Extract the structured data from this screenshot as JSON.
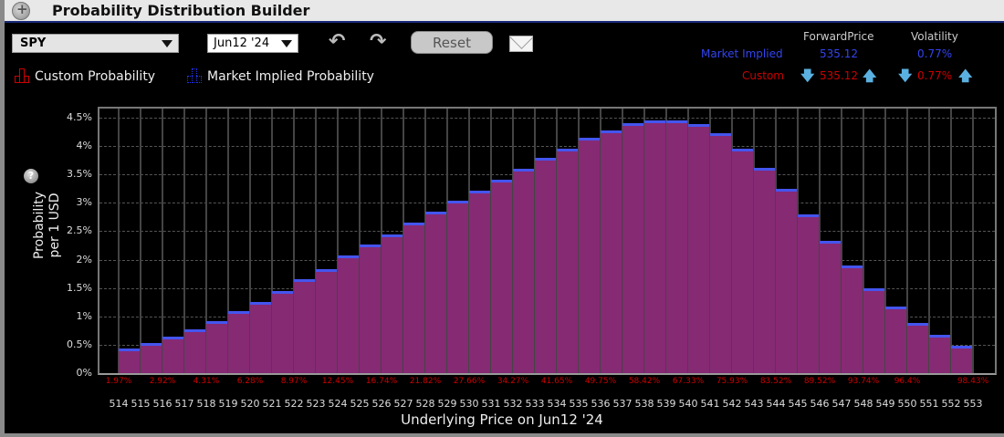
{
  "window": {
    "title": "Probability Distribution Builder"
  },
  "toolbar": {
    "symbol": "SPY",
    "expiry": "Jun12 '24",
    "undo_icon": "undo-icon",
    "redo_icon": "redo-icon",
    "reset_label": "Reset",
    "email_icon": "envelope-icon"
  },
  "legend": {
    "custom_label": "Custom Probability",
    "market_label": "Market Implied Probability",
    "custom_color": "#cc0000",
    "market_color": "#2233ee"
  },
  "stats": {
    "headers": {
      "forward": "ForwardPrice",
      "volatility": "Volatility"
    },
    "market": {
      "label": "Market Implied",
      "forward": "535.12",
      "volatility": "0.77%"
    },
    "custom": {
      "label": "Custom",
      "forward": "535.12",
      "volatility": "0.77%"
    }
  },
  "chart_data": {
    "type": "bar",
    "title": "Probability Distribution Builder",
    "xlabel": "Underlying Price on Jun12 '24",
    "ylabel": "Probability per 1 USD",
    "ylim": [
      0,
      4.5
    ],
    "yticks": [
      "0%",
      "0.5%",
      "1%",
      "1.5%",
      "2%",
      "2.5%",
      "3%",
      "3.5%",
      "4%",
      "4.5%"
    ],
    "grid": true,
    "x_ticks": [
      514,
      515,
      516,
      517,
      518,
      519,
      520,
      521,
      522,
      523,
      524,
      525,
      526,
      527,
      528,
      529,
      530,
      531,
      532,
      533,
      534,
      535,
      536,
      537,
      538,
      539,
      540,
      541,
      542,
      543,
      544,
      545,
      546,
      547,
      548,
      549,
      550,
      551,
      552,
      553
    ],
    "categories": [
      "514",
      "515",
      "516",
      "517",
      "518",
      "519",
      "520",
      "521",
      "522",
      "523",
      "524",
      "525",
      "526",
      "527",
      "528",
      "529",
      "530",
      "531",
      "532",
      "533",
      "534",
      "535",
      "536",
      "537",
      "538",
      "539",
      "540",
      "541",
      "542",
      "543",
      "544",
      "545",
      "546",
      "547",
      "548",
      "549",
      "550",
      "551",
      "552"
    ],
    "series": [
      {
        "name": "Custom Probability",
        "color": "#862a74",
        "values": [
          0.43,
          0.53,
          0.65,
          0.77,
          0.92,
          1.09,
          1.26,
          1.45,
          1.65,
          1.84,
          2.07,
          2.26,
          2.45,
          2.65,
          2.84,
          3.03,
          3.21,
          3.4,
          3.6,
          3.79,
          3.96,
          4.14,
          4.28,
          4.4,
          4.45,
          4.45,
          4.38,
          4.23,
          3.96,
          3.62,
          3.24,
          2.79,
          2.33,
          1.89,
          1.5,
          1.18,
          0.89,
          0.67,
          0.49
        ]
      },
      {
        "name": "Market Implied Probability",
        "color": "#4455ee",
        "values": [
          0.43,
          0.53,
          0.65,
          0.77,
          0.92,
          1.09,
          1.26,
          1.45,
          1.65,
          1.84,
          2.07,
          2.26,
          2.45,
          2.65,
          2.84,
          3.03,
          3.21,
          3.4,
          3.6,
          3.79,
          3.96,
          4.14,
          4.28,
          4.4,
          4.45,
          4.45,
          4.38,
          4.23,
          3.96,
          3.62,
          3.24,
          2.79,
          2.33,
          1.89,
          1.5,
          1.18,
          0.89,
          0.67,
          0.49
        ]
      }
    ],
    "cumulative_labels": [
      {
        "at": 514,
        "text": "1.97%"
      },
      {
        "at": 516,
        "text": "2.92%"
      },
      {
        "at": 518,
        "text": "4.31%"
      },
      {
        "at": 520,
        "text": "6.28%"
      },
      {
        "at": 522,
        "text": "8.97%"
      },
      {
        "at": 524,
        "text": "12.45%"
      },
      {
        "at": 526,
        "text": "16.74%"
      },
      {
        "at": 528,
        "text": "21.82%"
      },
      {
        "at": 530,
        "text": "27.66%"
      },
      {
        "at": 532,
        "text": "34.27%"
      },
      {
        "at": 534,
        "text": "41.65%"
      },
      {
        "at": 536,
        "text": "49.75%"
      },
      {
        "at": 538,
        "text": "58.42%"
      },
      {
        "at": 540,
        "text": "67.33%"
      },
      {
        "at": 542,
        "text": "75.93%"
      },
      {
        "at": 544,
        "text": "83.52%"
      },
      {
        "at": 546,
        "text": "89.52%"
      },
      {
        "at": 548,
        "text": "93.74%"
      },
      {
        "at": 550,
        "text": "96.4%"
      },
      {
        "at": 553,
        "text": "98.43%"
      }
    ]
  }
}
